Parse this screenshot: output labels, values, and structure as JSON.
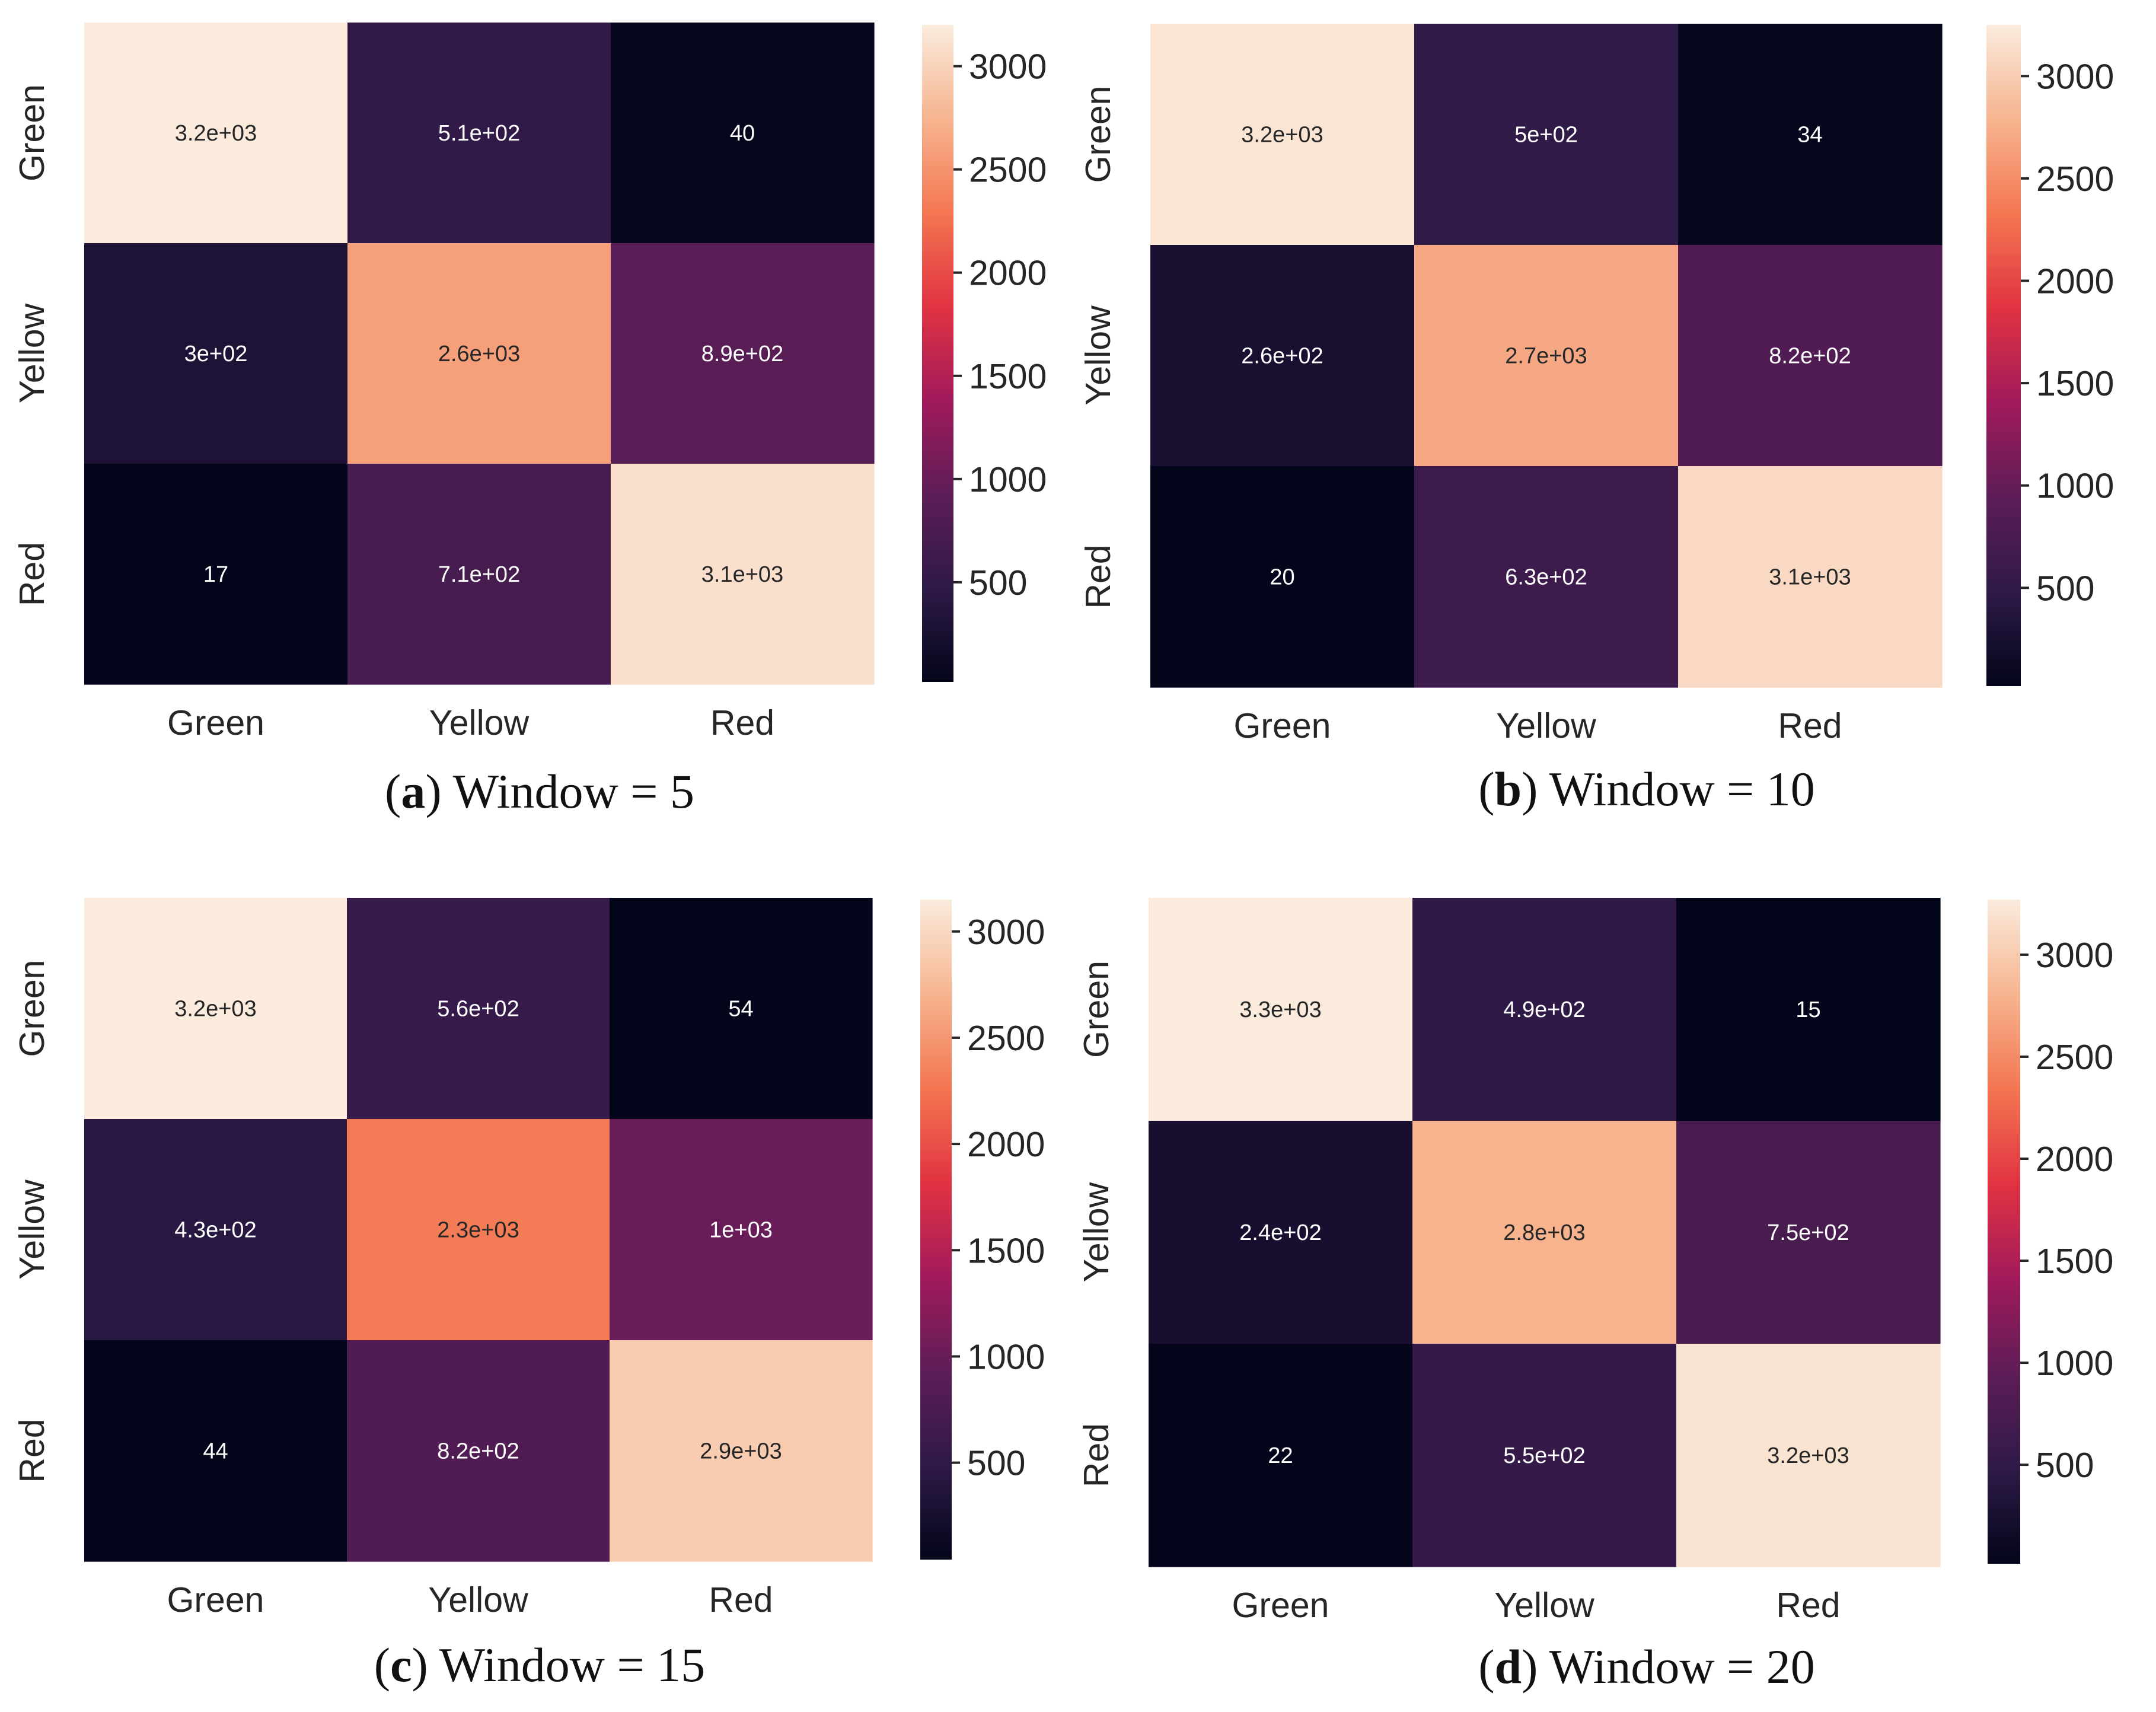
{
  "figure": {
    "colormap": [
      "#03051a",
      "#2e1a47",
      "#5d1d57",
      "#a11a5b",
      "#e13342",
      "#f37651",
      "#f6b48f",
      "#faebdd"
    ]
  },
  "chart_data": [
    {
      "type": "heatmap",
      "caption_letter": "a",
      "caption_text": "Window = 5",
      "row_labels": [
        "Green",
        "Yellow",
        "Red"
      ],
      "col_labels": [
        "Green",
        "Yellow",
        "Red"
      ],
      "values": [
        [
          3200,
          510,
          40
        ],
        [
          300,
          2600,
          890
        ],
        [
          17,
          710,
          3100
        ]
      ],
      "annotations": [
        [
          "3.2e+03",
          "5.1e+02",
          "40"
        ],
        [
          "3e+02",
          "2.6e+03",
          "8.9e+02"
        ],
        [
          "17",
          "7.1e+02",
          "3.1e+03"
        ]
      ],
      "vmin": 17,
      "vmax": 3200,
      "colorbar_ticks": [
        500,
        1000,
        1500,
        2000,
        2500,
        3000
      ],
      "colorbar_tick_labels": [
        "500",
        "1000",
        "1500",
        "2000",
        "2500",
        "3000"
      ]
    },
    {
      "type": "heatmap",
      "caption_letter": "b",
      "caption_text": "Window = 10",
      "row_labels": [
        "Green",
        "Yellow",
        "Red"
      ],
      "col_labels": [
        "Green",
        "Yellow",
        "Red"
      ],
      "values": [
        [
          3200,
          500,
          34
        ],
        [
          260,
          2700,
          820
        ],
        [
          20,
          630,
          3100
        ]
      ],
      "annotations": [
        [
          "3.2e+03",
          "5e+02",
          "34"
        ],
        [
          "2.6e+02",
          "2.7e+03",
          "8.2e+02"
        ],
        [
          "20",
          "6.3e+02",
          "3.1e+03"
        ]
      ],
      "vmin": 20,
      "vmax": 3250,
      "colorbar_ticks": [
        500,
        1000,
        1500,
        2000,
        2500,
        3000
      ],
      "colorbar_tick_labels": [
        "500",
        "1000",
        "1500",
        "2000",
        "2500",
        "3000"
      ]
    },
    {
      "type": "heatmap",
      "caption_letter": "c",
      "caption_text": "Window = 15",
      "row_labels": [
        "Green",
        "Yellow",
        "Red"
      ],
      "col_labels": [
        "Green",
        "Yellow",
        "Red"
      ],
      "values": [
        [
          3200,
          560,
          54
        ],
        [
          430,
          2300,
          1000
        ],
        [
          44,
          820,
          2900
        ]
      ],
      "annotations": [
        [
          "3.2e+03",
          "5.6e+02",
          "54"
        ],
        [
          "4.3e+02",
          "2.3e+03",
          "1e+03"
        ],
        [
          "44",
          "8.2e+02",
          "2.9e+03"
        ]
      ],
      "vmin": 44,
      "vmax": 3150,
      "colorbar_ticks": [
        500,
        1000,
        1500,
        2000,
        2500,
        3000
      ],
      "colorbar_tick_labels": [
        "500",
        "1000",
        "1500",
        "2000",
        "2500",
        "3000"
      ]
    },
    {
      "type": "heatmap",
      "caption_letter": "d",
      "caption_text": "Window = 20",
      "row_labels": [
        "Green",
        "Yellow",
        "Red"
      ],
      "col_labels": [
        "Green",
        "Yellow",
        "Red"
      ],
      "values": [
        [
          3300,
          490,
          15
        ],
        [
          240,
          2800,
          750
        ],
        [
          22,
          550,
          3200
        ]
      ],
      "annotations": [
        [
          "3.3e+03",
          "4.9e+02",
          "15"
        ],
        [
          "2.4e+02",
          "2.8e+03",
          "7.5e+02"
        ],
        [
          "22",
          "5.5e+02",
          "3.2e+03"
        ]
      ],
      "vmin": 15,
      "vmax": 3270,
      "colorbar_ticks": [
        500,
        1000,
        1500,
        2000,
        2500,
        3000
      ],
      "colorbar_tick_labels": [
        "500",
        "1000",
        "1500",
        "2000",
        "2500",
        "3000"
      ]
    }
  ]
}
